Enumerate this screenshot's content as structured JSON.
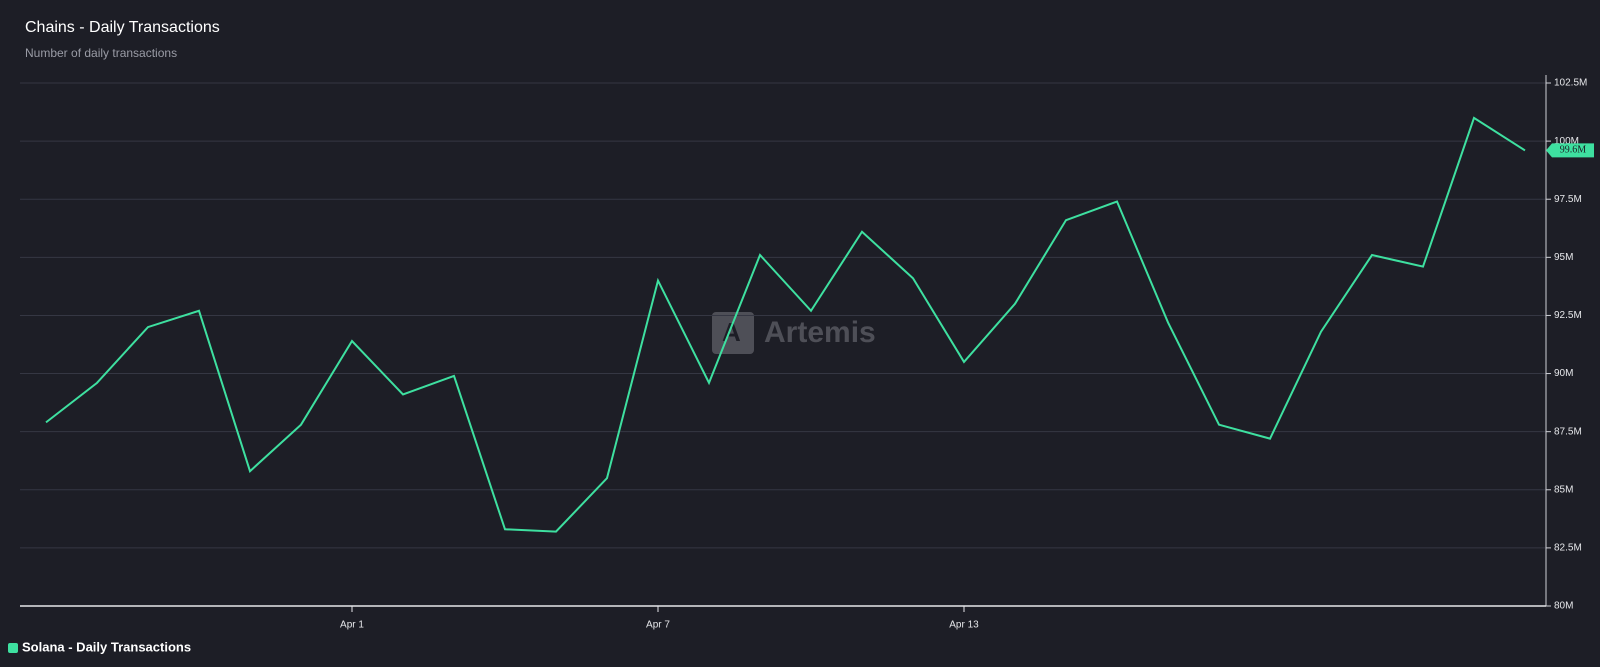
{
  "chart_data": {
    "type": "line",
    "title": "Chains - Daily Transactions",
    "subtitle": "Number of daily transactions",
    "watermark": "Artemis",
    "categories": [
      null,
      null,
      null,
      null,
      null,
      null,
      "Apr 1",
      null,
      null,
      null,
      null,
      null,
      "Apr 7",
      null,
      null,
      null,
      null,
      null,
      "Apr 13",
      null,
      null,
      null,
      null,
      null,
      null,
      null,
      null,
      null,
      null,
      null
    ],
    "series": [
      {
        "name": "Solana - Daily Transactions",
        "color": "#3ee0a0",
        "values": [
          87.9,
          89.6,
          92.0,
          92.7,
          85.8,
          87.8,
          91.4,
          89.1,
          89.9,
          83.3,
          83.2,
          85.5,
          94.0,
          89.6,
          95.1,
          92.7,
          96.1,
          94.1,
          90.5,
          93.0,
          96.6,
          97.4,
          92.2,
          87.8,
          87.2,
          91.8,
          95.1,
          94.6,
          101.0,
          99.6
        ],
        "last_label": "99.6M"
      }
    ],
    "ylim": [
      80,
      102.5
    ],
    "yticks": [
      {
        "value": 80,
        "label": "80M"
      },
      {
        "value": 82.5,
        "label": "82.5M"
      },
      {
        "value": 85,
        "label": "85M"
      },
      {
        "value": 87.5,
        "label": "87.5M"
      },
      {
        "value": 90,
        "label": "90M"
      },
      {
        "value": 92.5,
        "label": "92.5M"
      },
      {
        "value": 95,
        "label": "95M"
      },
      {
        "value": 97.5,
        "label": "97.5M"
      },
      {
        "value": 100,
        "label": "100M"
      },
      {
        "value": 102.5,
        "label": "102.5M"
      }
    ],
    "grid": true
  }
}
